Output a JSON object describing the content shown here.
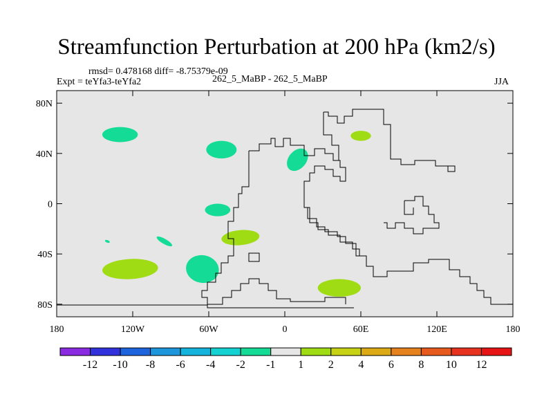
{
  "title": "Streamfunction Perturbation at 200 hPa (km2/s)",
  "stats": "rmsd= 0.478168 diff= -8.75379e-09",
  "experiment": "Expt = teYfa3-teYfa2",
  "case": "262_5_MaBP - 262_5_MaBP",
  "season": "JJA",
  "chart_data": {
    "type": "contour-map",
    "x_axis": {
      "range": [
        -180,
        180
      ],
      "ticks": [
        -180,
        -120,
        -60,
        0,
        60,
        120,
        180
      ],
      "tick_labels": [
        "180",
        "120W",
        "60W",
        "0",
        "60E",
        "120E",
        "180"
      ]
    },
    "y_axis": {
      "range": [
        -90,
        90
      ],
      "ticks": [
        80,
        40,
        0,
        -40,
        -80
      ],
      "tick_labels": [
        "80N",
        "40N",
        "0",
        "40S",
        "80S"
      ]
    },
    "colorbar": {
      "levels": [
        -12,
        -10,
        -8,
        -6,
        -4,
        -2,
        -1,
        1,
        2,
        4,
        6,
        8,
        10,
        12
      ],
      "labels": [
        "-12",
        "-10",
        "-8",
        "-6",
        "-4",
        "-2",
        "-1",
        "1",
        "2",
        "4",
        "6",
        "8",
        "10",
        "12"
      ],
      "colors": [
        "#8a2be2",
        "#3232dc",
        "#1e64dc",
        "#1e96dc",
        "#14b4dc",
        "#14d2d2",
        "#14dc96",
        "#e6e6e6",
        "#a0dc14",
        "#c8d214",
        "#dcaa14",
        "#e6821e",
        "#e65a1e",
        "#e6321e",
        "#e61414"
      ]
    },
    "regions": [
      {
        "name": "north-atlantic-neg",
        "lon": -130,
        "lat": 55,
        "rlon": 14,
        "rlat": 6,
        "rot": 0,
        "value_class": -1.5
      },
      {
        "name": "mid-atlantic-neg",
        "lon": -50,
        "lat": 43,
        "rlon": 12,
        "rlat": 7,
        "rot": 0,
        "value_class": -1.5
      },
      {
        "name": "africa-neg",
        "lon": 10,
        "lat": 35,
        "rlon": 7,
        "rlat": 10,
        "rot": 40,
        "value_class": -1.5
      },
      {
        "name": "central-asia-pos",
        "lon": 60,
        "lat": 54,
        "rlon": 8,
        "rlat": 4,
        "rot": 0,
        "value_class": 1.5
      },
      {
        "name": "equatorial-atlantic-neg",
        "lon": -53,
        "lat": -5,
        "rlon": 10,
        "rlat": 5,
        "rot": 0,
        "value_class": -1.5
      },
      {
        "name": "south-atlantic-pos",
        "lon": -35,
        "lat": -27,
        "rlon": 15,
        "rlat": 6,
        "rot": -5,
        "value_class": 1.5
      },
      {
        "name": "sw-pacific-small-neg",
        "lon": -140,
        "lat": -30,
        "rlon": 2,
        "rlat": 1,
        "rot": 20,
        "value_class": -1.5
      },
      {
        "name": "south-pacific-strip-neg",
        "lon": -95,
        "lat": -30,
        "rlon": 7,
        "rlat": 2,
        "rot": 30,
        "value_class": -1.5
      },
      {
        "name": "south-pacific-pos",
        "lon": -122,
        "lat": -52,
        "rlon": 22,
        "rlat": 8,
        "rot": -3,
        "value_class": 1.5
      },
      {
        "name": "drake-passage-neg",
        "lon": -65,
        "lat": -52,
        "rlon": 13,
        "rlat": 11,
        "rot": 10,
        "value_class": -1.5
      },
      {
        "name": "southern-ocean-pos",
        "lon": 43,
        "lat": -67,
        "rlon": 17,
        "rlat": 7,
        "rot": 0,
        "value_class": 1.5
      }
    ]
  }
}
